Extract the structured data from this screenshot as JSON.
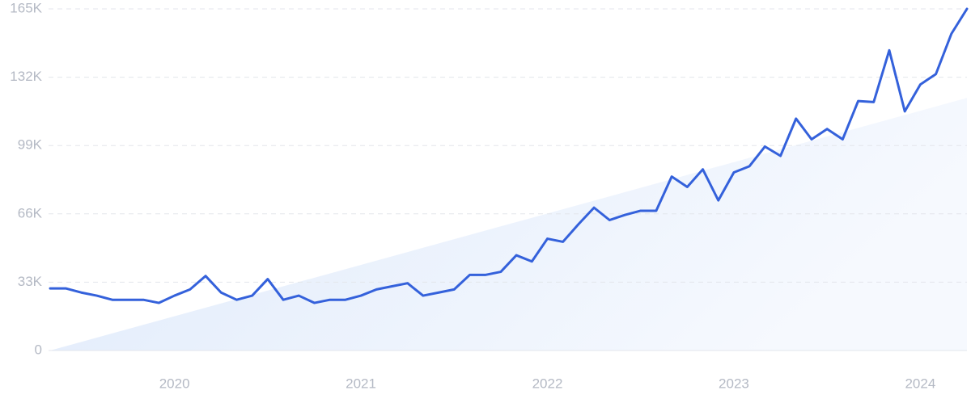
{
  "chart_data": {
    "type": "line",
    "categories": [
      null,
      null,
      null,
      null,
      null,
      null,
      null,
      null,
      "2020",
      null,
      null,
      null,
      null,
      null,
      null,
      null,
      null,
      null,
      null,
      null,
      "2021",
      null,
      null,
      null,
      null,
      null,
      null,
      null,
      null,
      null,
      null,
      null,
      "2022",
      null,
      null,
      null,
      null,
      null,
      null,
      null,
      null,
      null,
      null,
      null,
      "2023",
      null,
      null,
      null,
      null,
      null,
      null,
      null,
      null,
      null,
      null,
      null,
      "2024",
      null,
      null,
      null
    ],
    "series": [
      {
        "color": "#3461db",
        "values": [
          30000,
          30000,
          28000,
          26500,
          24500,
          24500,
          24500,
          23000,
          26500,
          29500,
          36000,
          28000,
          24500,
          26500,
          34500,
          24500,
          26500,
          23000,
          24500,
          24500,
          26500,
          29500,
          31000,
          32500,
          26500,
          28000,
          29500,
          36500,
          36500,
          38000,
          46000,
          43000,
          54000,
          52500,
          61000,
          69000,
          63000,
          65500,
          67500,
          67500,
          84000,
          79000,
          87500,
          72500,
          86000,
          89000,
          98500,
          94000,
          112000,
          102000,
          107000,
          102000,
          120500,
          120000,
          145000,
          115500,
          128500,
          133500,
          153000,
          165000
        ]
      }
    ],
    "trend": {
      "start": 0,
      "end": 122000
    },
    "ylim": [
      0,
      165000
    ],
    "yticks": [
      0,
      {
        "value": 33000,
        "label": "33K"
      },
      {
        "value": 66000,
        "label": "66K"
      },
      {
        "value": 99000,
        "label": "99K"
      },
      {
        "value": 132000,
        "label": "132K"
      },
      {
        "value": 165000,
        "label": "165K"
      }
    ],
    "grid": true
  }
}
